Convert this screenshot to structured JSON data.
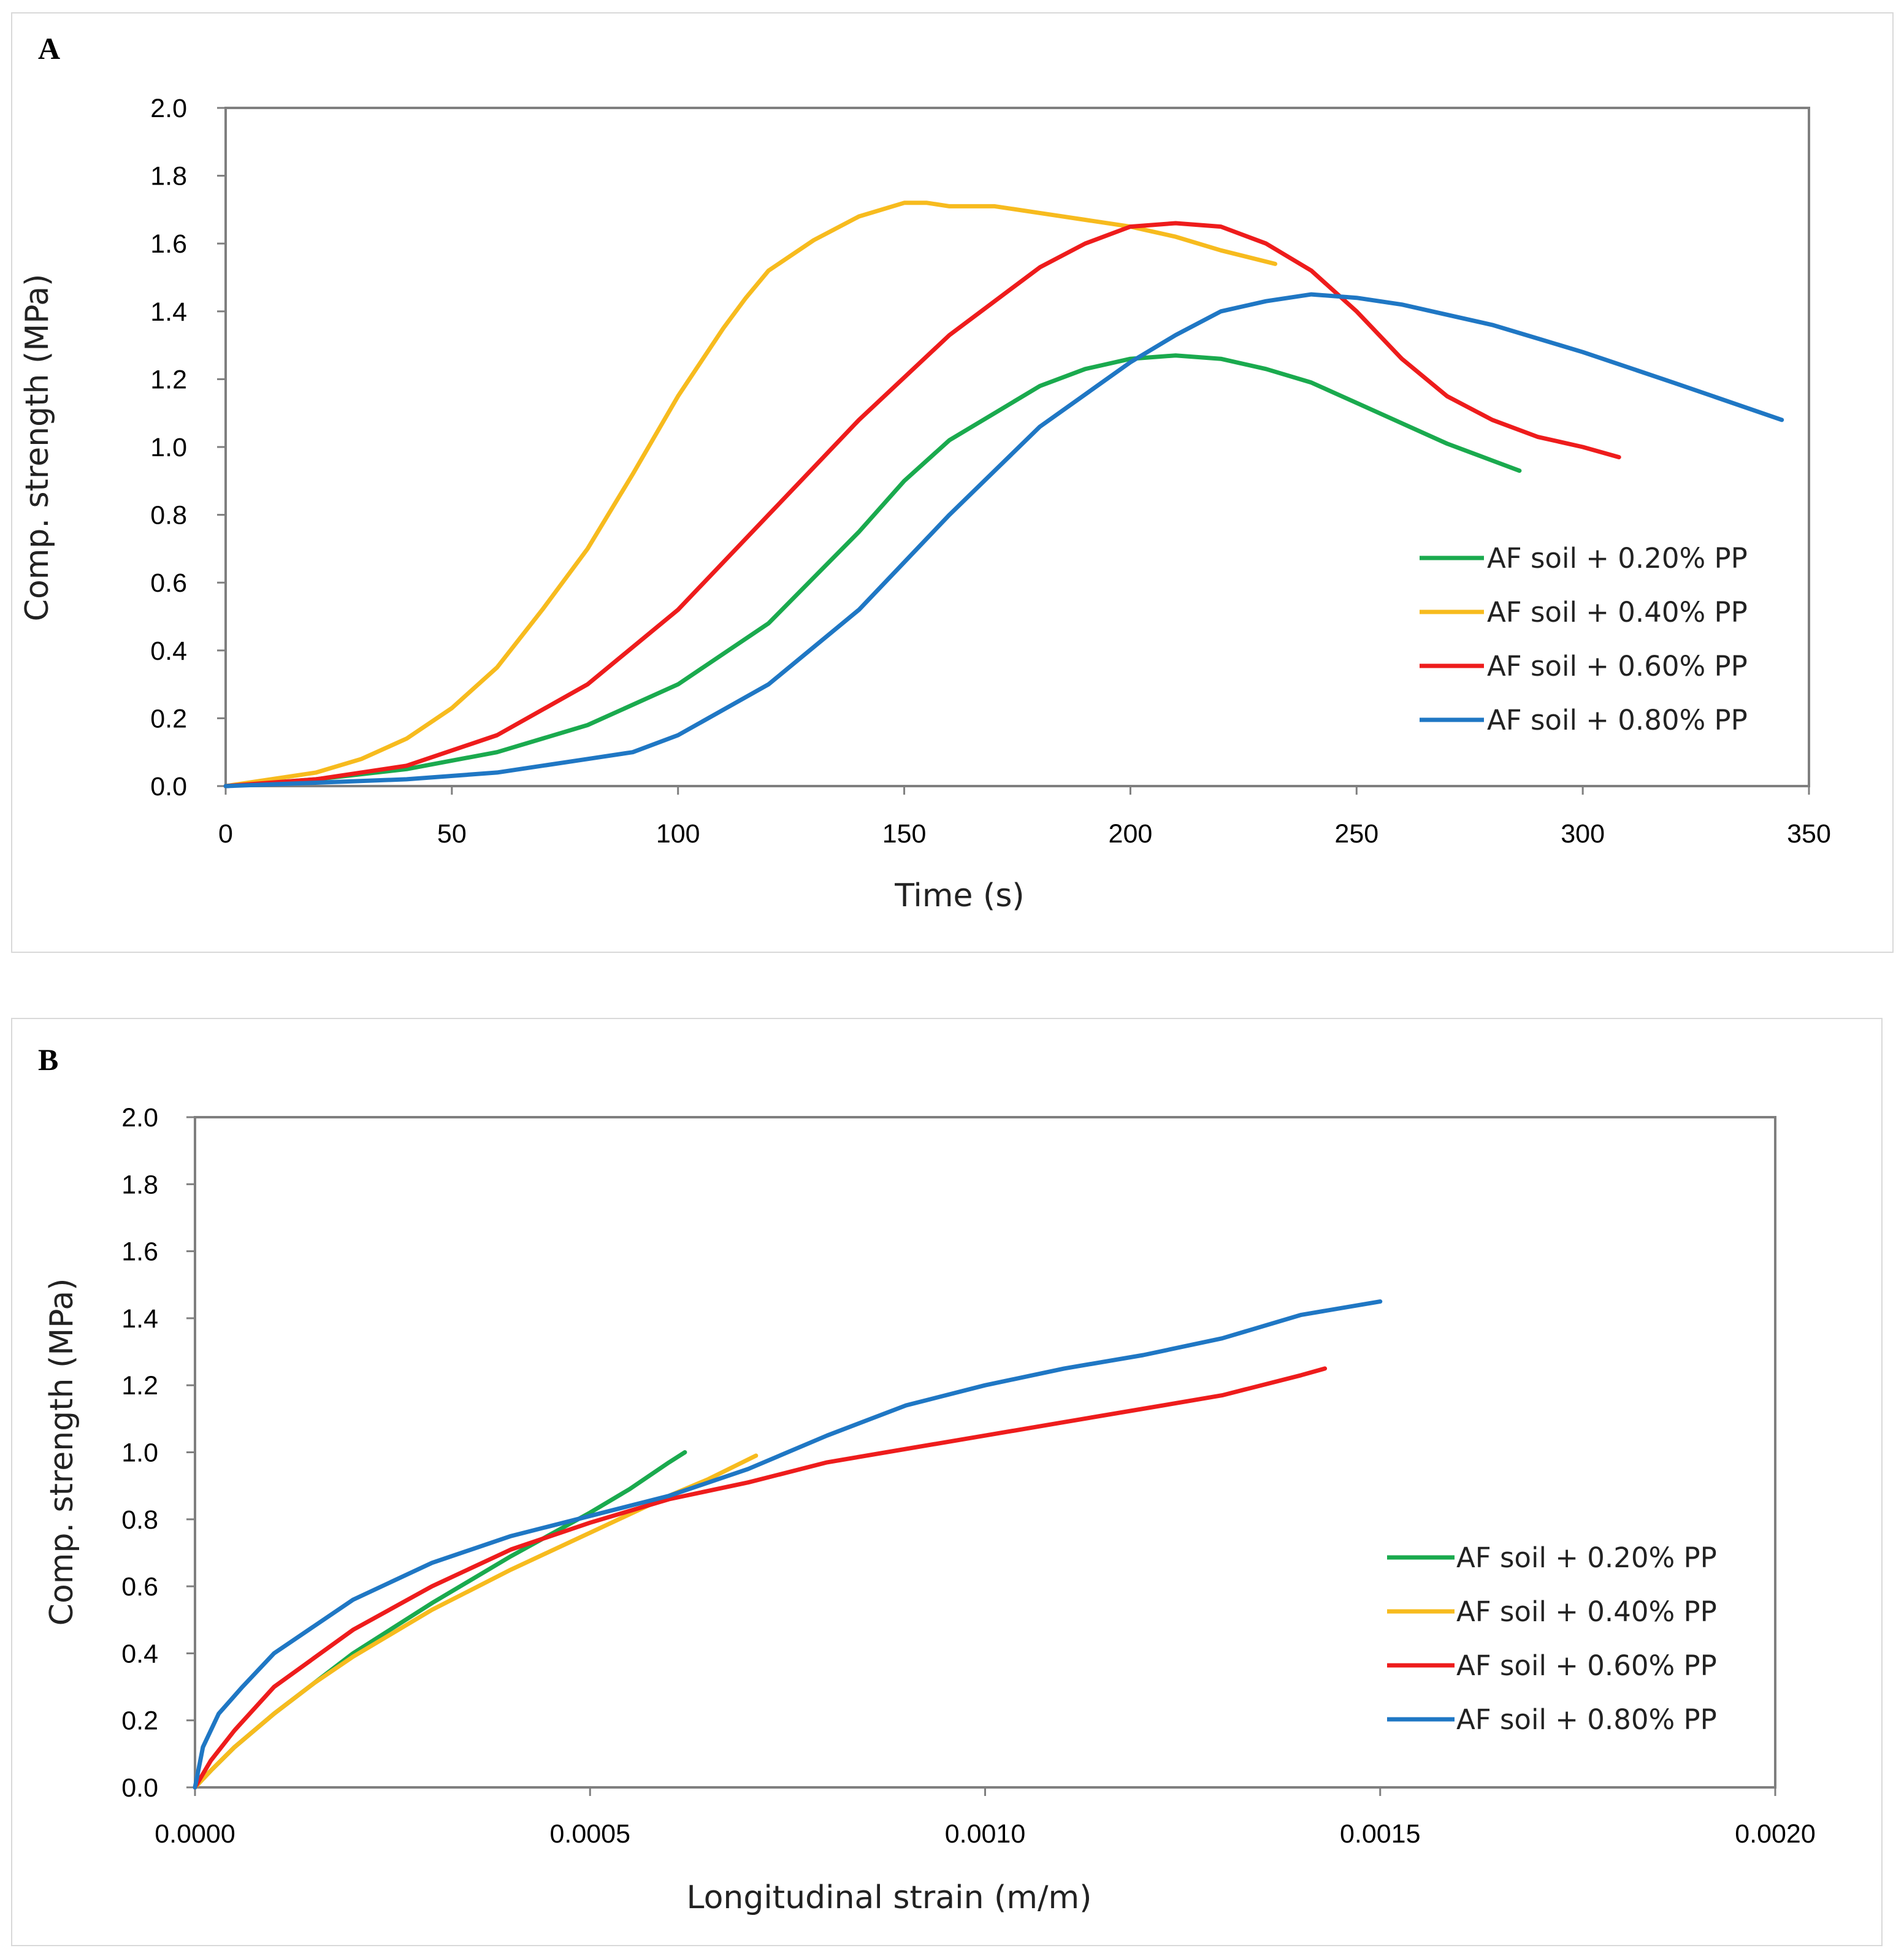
{
  "chart_data": [
    {
      "panel": "A",
      "type": "line",
      "xlabel": "Time (s)",
      "ylabel": "Comp. strength (MPa)",
      "xlim": [
        0,
        350
      ],
      "ylim": [
        0,
        2.0
      ],
      "xticks": [
        "0",
        "50",
        "100",
        "150",
        "200",
        "250",
        "300",
        "350"
      ],
      "yticks": [
        "0.0",
        "0.2",
        "0.4",
        "0.6",
        "0.8",
        "1.0",
        "1.2",
        "1.4",
        "1.6",
        "1.8",
        "2.0"
      ],
      "legend_position": "lower-right",
      "series": [
        {
          "name": "AF soil + 0.20% PP",
          "color": "#1aaa4e",
          "x": [
            0,
            20,
            40,
            60,
            80,
            100,
            120,
            140,
            150,
            160,
            170,
            180,
            190,
            200,
            210,
            220,
            230,
            240,
            250,
            260,
            270,
            280,
            286
          ],
          "y": [
            0,
            0.02,
            0.05,
            0.1,
            0.18,
            0.3,
            0.48,
            0.75,
            0.9,
            1.02,
            1.1,
            1.18,
            1.23,
            1.26,
            1.27,
            1.26,
            1.23,
            1.19,
            1.13,
            1.07,
            1.01,
            0.96,
            0.93
          ]
        },
        {
          "name": "AF soil + 0.40% PP",
          "color": "#f7bb1e",
          "x": [
            0,
            20,
            30,
            40,
            50,
            60,
            70,
            80,
            90,
            100,
            110,
            115,
            120,
            130,
            140,
            150,
            155,
            160,
            170,
            180,
            190,
            200,
            210,
            220,
            232
          ],
          "y": [
            0,
            0.04,
            0.08,
            0.14,
            0.23,
            0.35,
            0.52,
            0.7,
            0.92,
            1.15,
            1.35,
            1.44,
            1.52,
            1.61,
            1.68,
            1.72,
            1.72,
            1.71,
            1.71,
            1.69,
            1.67,
            1.65,
            1.62,
            1.58,
            1.54
          ]
        },
        {
          "name": "AF soil + 0.60% PP",
          "color": "#ee1c1c",
          "x": [
            0,
            20,
            40,
            60,
            80,
            100,
            120,
            140,
            160,
            180,
            190,
            200,
            210,
            220,
            230,
            240,
            250,
            260,
            270,
            280,
            290,
            300,
            308
          ],
          "y": [
            0,
            0.02,
            0.06,
            0.15,
            0.3,
            0.52,
            0.8,
            1.08,
            1.33,
            1.53,
            1.6,
            1.65,
            1.66,
            1.65,
            1.6,
            1.52,
            1.4,
            1.26,
            1.15,
            1.08,
            1.03,
            1.0,
            0.97
          ]
        },
        {
          "name": "AF soil + 0.80% PP",
          "color": "#1f77c4",
          "x": [
            0,
            40,
            60,
            80,
            90,
            100,
            120,
            140,
            160,
            180,
            200,
            210,
            220,
            230,
            240,
            250,
            260,
            270,
            280,
            290,
            300,
            320,
            344
          ],
          "y": [
            0,
            0.02,
            0.04,
            0.08,
            0.1,
            0.15,
            0.3,
            0.52,
            0.8,
            1.06,
            1.25,
            1.33,
            1.4,
            1.43,
            1.45,
            1.44,
            1.42,
            1.39,
            1.36,
            1.32,
            1.28,
            1.19,
            1.08
          ]
        }
      ]
    },
    {
      "panel": "B",
      "type": "line",
      "xlabel": "Longitudinal strain (m/m)",
      "ylabel": "Comp. strength (MPa)",
      "xlim": [
        0,
        0.002
      ],
      "ylim": [
        0,
        2.0
      ],
      "xticks": [
        "0.0000",
        "0.0005",
        "0.0010",
        "0.0015",
        "0.0020"
      ],
      "yticks": [
        "0.0",
        "0.2",
        "0.4",
        "0.6",
        "0.8",
        "1.0",
        "1.2",
        "1.4",
        "1.6",
        "1.8",
        "2.0"
      ],
      "legend_position": "lower-right",
      "series": [
        {
          "name": "AF soil + 0.20% PP",
          "color": "#1aaa4e",
          "x": [
            0,
            2e-05,
            5e-05,
            0.0001,
            0.00015,
            0.0002,
            0.0003,
            0.0004,
            0.0005,
            0.00055,
            0.0006,
            0.00062
          ],
          "y": [
            0,
            0.05,
            0.12,
            0.22,
            0.31,
            0.4,
            0.55,
            0.69,
            0.82,
            0.89,
            0.97,
            1.0
          ]
        },
        {
          "name": "AF soil + 0.40% PP",
          "color": "#f7bb1e",
          "x": [
            0,
            2e-05,
            5e-05,
            0.0001,
            0.00015,
            0.0002,
            0.0003,
            0.0004,
            0.0005,
            0.0006,
            0.00065,
            0.00071
          ],
          "y": [
            0,
            0.05,
            0.12,
            0.22,
            0.31,
            0.39,
            0.53,
            0.65,
            0.76,
            0.87,
            0.92,
            0.99
          ]
        },
        {
          "name": "AF soil + 0.60% PP",
          "color": "#ee1c1c",
          "x": [
            0,
            2e-05,
            5e-05,
            0.0001,
            0.0002,
            0.0003,
            0.0004,
            0.0005,
            0.0006,
            0.0007,
            0.0008,
            0.0009,
            0.001,
            0.0011,
            0.0012,
            0.0013,
            0.0014,
            0.00143
          ],
          "y": [
            0,
            0.08,
            0.17,
            0.3,
            0.47,
            0.6,
            0.71,
            0.79,
            0.86,
            0.91,
            0.97,
            1.01,
            1.05,
            1.09,
            1.13,
            1.17,
            1.23,
            1.25
          ]
        },
        {
          "name": "AF soil + 0.80% PP",
          "color": "#1f77c4",
          "x": [
            0,
            1e-05,
            3e-05,
            6e-05,
            0.0001,
            0.0002,
            0.0003,
            0.0004,
            0.0005,
            0.0006,
            0.0007,
            0.0008,
            0.0009,
            0.001,
            0.0011,
            0.0012,
            0.0013,
            0.0014,
            0.0015
          ],
          "y": [
            0,
            0.12,
            0.22,
            0.3,
            0.4,
            0.56,
            0.67,
            0.75,
            0.81,
            0.87,
            0.95,
            1.05,
            1.14,
            1.2,
            1.25,
            1.29,
            1.34,
            1.41,
            1.45
          ]
        }
      ]
    }
  ]
}
